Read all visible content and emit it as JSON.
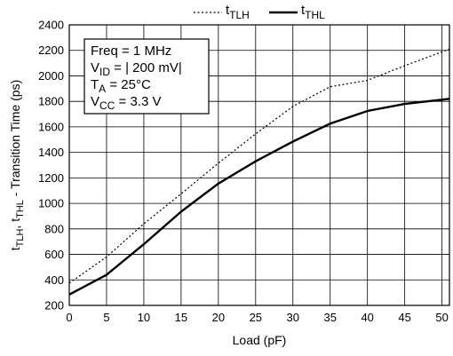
{
  "chart_data": {
    "type": "line",
    "xlabel": "Load (pF)",
    "ylabel": {
      "main": "t",
      "sub1": "TLH",
      "sep": ", t",
      "sub2": "THL",
      "rest": " - Transition Time (ps)"
    },
    "xlim": [
      0,
      51
    ],
    "ylim": [
      200,
      2400
    ],
    "xticks": [
      "0",
      "5",
      "10",
      "15",
      "20",
      "25",
      "30",
      "35",
      "40",
      "45",
      "50"
    ],
    "yticks": [
      "200",
      "400",
      "600",
      "800",
      "1000",
      "1200",
      "1400",
      "1600",
      "1800",
      "2000",
      "2200",
      "2400"
    ],
    "grid": true,
    "legend_position": "top-center",
    "legend": [
      {
        "main": "t",
        "sub": "TLH",
        "style": "dotted"
      },
      {
        "main": "t",
        "sub": "THL",
        "style": "solid"
      }
    ],
    "conditions": [
      {
        "pre": "Freq = 1 MHz",
        "sub": "",
        "post": ""
      },
      {
        "pre": "V",
        "sub": "ID",
        "post": " = | 200 mV|"
      },
      {
        "pre": "T",
        "sub": "A",
        "post": "   = 25°C"
      },
      {
        "pre": "V",
        "sub": "CC",
        "post": " = 3.3 V"
      }
    ],
    "series": [
      {
        "name": "tTLH",
        "style": "dotted",
        "x": [
          0,
          5,
          10,
          15,
          20,
          25,
          30,
          35,
          40,
          45,
          51
        ],
        "y": [
          375,
          580,
          840,
          1075,
          1315,
          1545,
          1760,
          1915,
          1965,
          2080,
          2210
        ]
      },
      {
        "name": "tTHL",
        "style": "solid",
        "x": [
          0,
          5,
          10,
          15,
          20,
          25,
          30,
          35,
          40,
          45,
          51
        ],
        "y": [
          285,
          440,
          680,
          935,
          1155,
          1330,
          1485,
          1625,
          1725,
          1780,
          1820
        ]
      }
    ]
  }
}
